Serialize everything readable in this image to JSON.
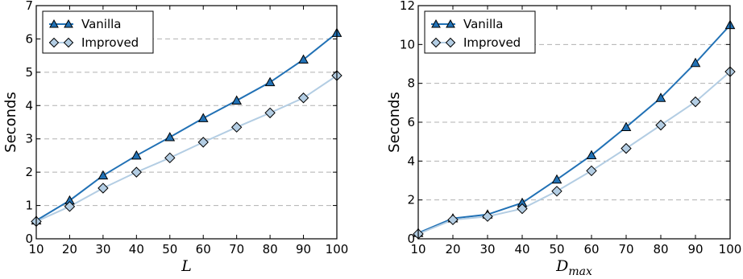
{
  "chart_data": [
    {
      "type": "line",
      "xlabel": "L",
      "xlabel_sub": "",
      "ylabel": "Seconds",
      "xlim": [
        10,
        100
      ],
      "ylim": [
        0,
        7
      ],
      "x_ticks": [
        10,
        20,
        30,
        40,
        50,
        60,
        70,
        80,
        90,
        100
      ],
      "y_ticks": [
        0,
        1,
        2,
        3,
        4,
        5,
        6,
        7
      ],
      "grid": "horizontal dashed",
      "legend_position": "top-left",
      "x": [
        10,
        20,
        30,
        40,
        50,
        60,
        70,
        80,
        90,
        100
      ],
      "series": [
        {
          "name": "Vanilla",
          "marker": "triangle",
          "color": "#2171b5",
          "values": [
            0.55,
            1.15,
            1.9,
            2.5,
            3.05,
            3.62,
            4.15,
            4.7,
            5.38,
            6.18
          ]
        },
        {
          "name": "Improved",
          "marker": "diamond",
          "color": "#b3cde3",
          "values": [
            0.52,
            0.97,
            1.52,
            2.0,
            2.43,
            2.9,
            3.35,
            3.78,
            4.23,
            4.9
          ]
        }
      ]
    },
    {
      "type": "line",
      "xlabel": "D",
      "xlabel_sub": "max",
      "ylabel": "Seconds",
      "xlim": [
        10,
        100
      ],
      "ylim": [
        0,
        12
      ],
      "x_ticks": [
        10,
        20,
        30,
        40,
        50,
        60,
        70,
        80,
        90,
        100
      ],
      "y_ticks": [
        0,
        2,
        4,
        6,
        8,
        10,
        12
      ],
      "grid": "horizontal dashed",
      "legend_position": "top-left",
      "x": [
        10,
        20,
        30,
        40,
        50,
        60,
        70,
        80,
        90,
        100
      ],
      "series": [
        {
          "name": "Vanilla",
          "marker": "triangle",
          "color": "#2171b5",
          "values": [
            0.3,
            1.05,
            1.25,
            1.85,
            3.05,
            4.3,
            5.75,
            7.25,
            9.05,
            11.0
          ]
        },
        {
          "name": "Improved",
          "marker": "diamond",
          "color": "#b3cde3",
          "values": [
            0.25,
            0.98,
            1.15,
            1.55,
            2.45,
            3.5,
            4.65,
            5.85,
            7.05,
            8.6
          ]
        }
      ]
    }
  ]
}
